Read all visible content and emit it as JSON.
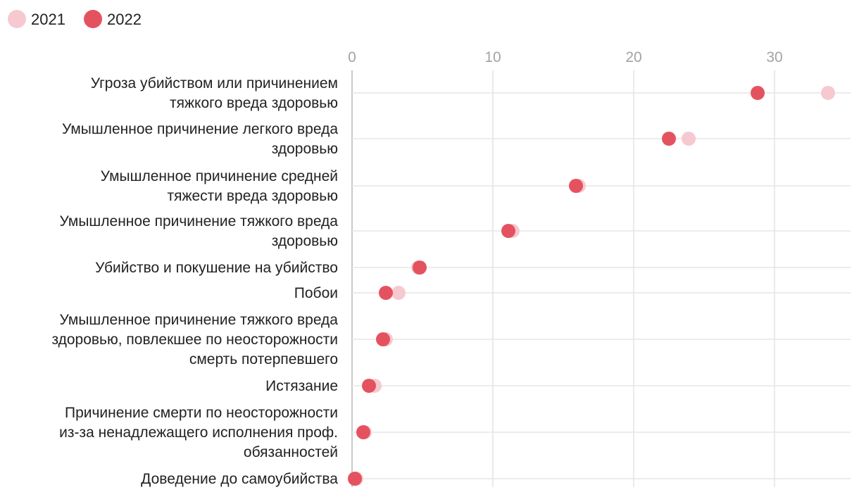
{
  "chart_data": {
    "type": "scatter",
    "title": "",
    "xlabel": "",
    "ylabel": "",
    "xlim": [
      0,
      35
    ],
    "xticks": [
      0,
      10,
      20,
      30
    ],
    "grid": true,
    "legend_position": "top-left",
    "colors": {
      "2021": "#f6c9d0",
      "2022": "#e5525f"
    },
    "categories": [
      [
        "Угроза убийством или причинением",
        "тяжкого вреда здоровью"
      ],
      [
        "Умышленное причинение легкого вреда",
        "здоровью"
      ],
      [
        "Умышленное причинение средней",
        "тяжести вреда здоровью"
      ],
      [
        "Умышленное причинение тяжкого вреда",
        "здоровью"
      ],
      [
        "Убийство и покушение на убийство"
      ],
      [
        "Побои"
      ],
      [
        "Умышленное причинение тяжкого вреда",
        "здоровью, повлекшее по неосторожности",
        "смерть потерпевшего"
      ],
      [
        "Истязание"
      ],
      [
        "Причинение смерти по неосторожности",
        "из-за ненадлежащего исполнения проф.",
        "обязанностей"
      ],
      [
        "Доведение до самоубийства"
      ]
    ],
    "series": [
      {
        "name": "2021",
        "values": [
          33.8,
          23.9,
          16.1,
          11.4,
          4.7,
          3.3,
          2.4,
          1.6,
          0.9,
          0.3
        ]
      },
      {
        "name": "2022",
        "values": [
          28.8,
          22.5,
          15.9,
          11.1,
          4.8,
          2.4,
          2.2,
          1.2,
          0.8,
          0.2
        ]
      }
    ]
  }
}
